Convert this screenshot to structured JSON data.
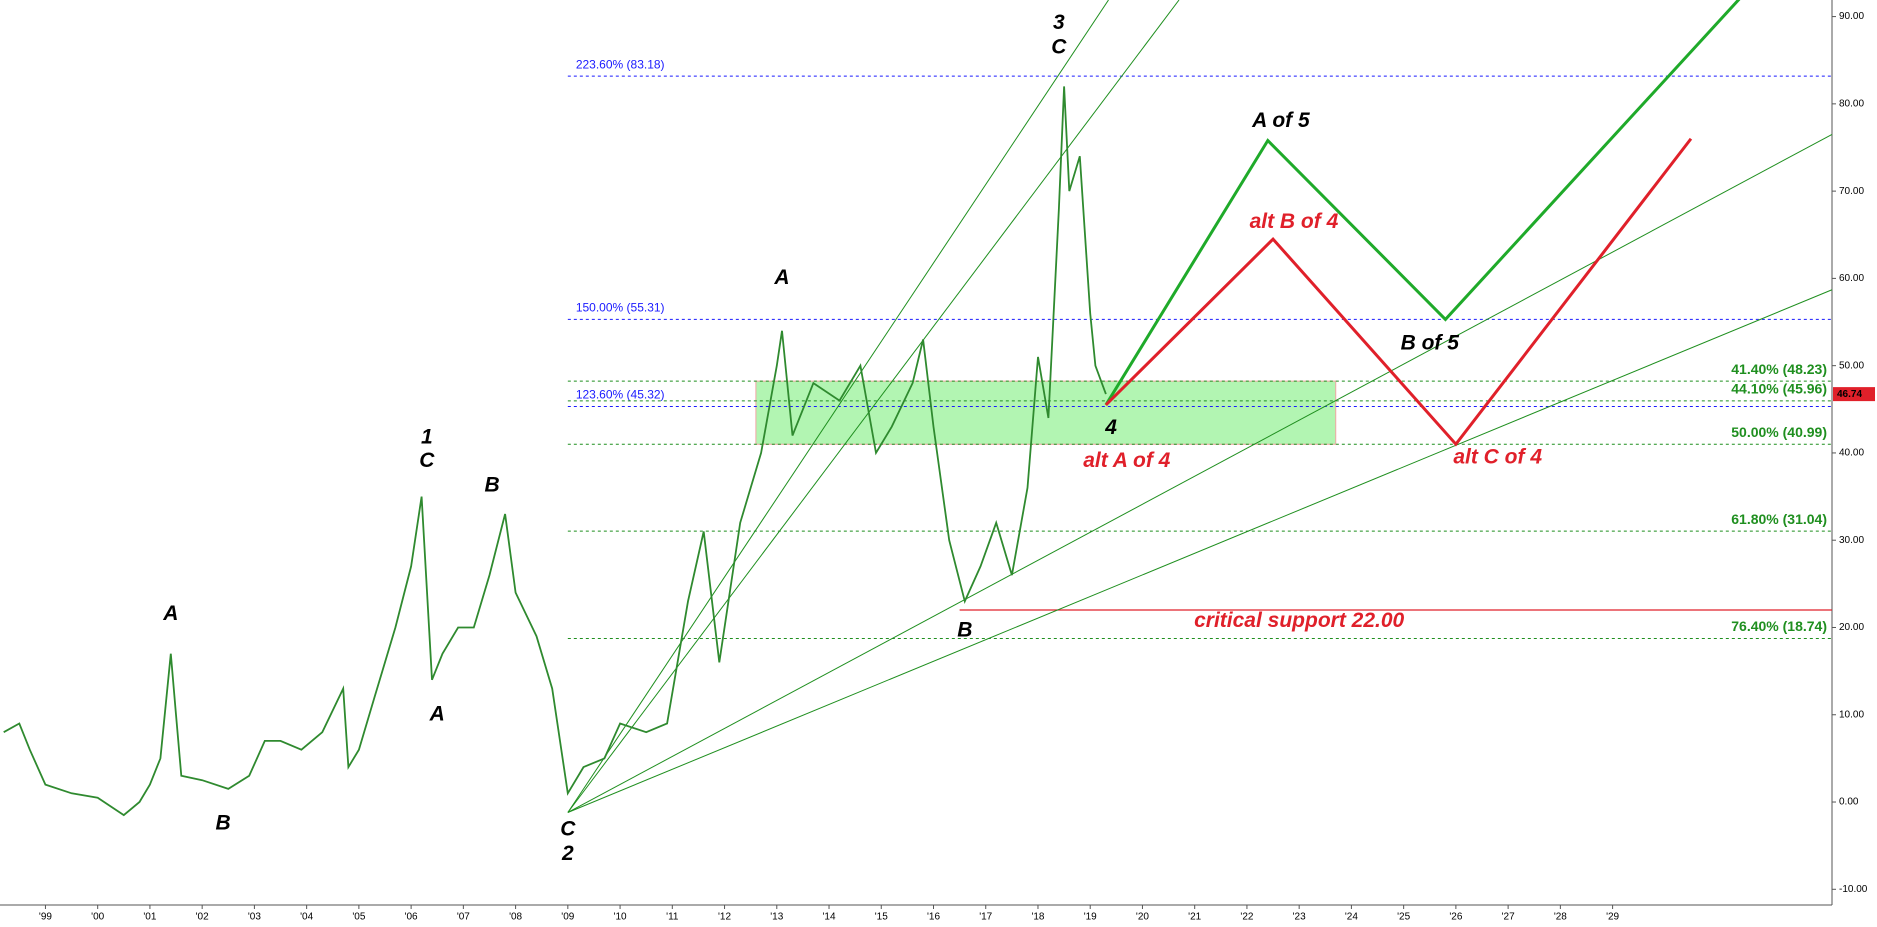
{
  "chart_data": {
    "type": "line",
    "xlim": [
      1998.13,
      2033.2
    ],
    "ylim": [
      -11.8,
      91.9
    ],
    "xticks": [
      {
        "value": 1999,
        "label": "'99"
      },
      {
        "value": 2000,
        "label": "'00"
      },
      {
        "value": 2001,
        "label": "'01"
      },
      {
        "value": 2002,
        "label": "'02"
      },
      {
        "value": 2003,
        "label": "'03"
      },
      {
        "value": 2004,
        "label": "'04"
      },
      {
        "value": 2005,
        "label": "'05"
      },
      {
        "value": 2006,
        "label": "'06"
      },
      {
        "value": 2007,
        "label": "'07"
      },
      {
        "value": 2008,
        "label": "'08"
      },
      {
        "value": 2009,
        "label": "'09"
      },
      {
        "value": 2010,
        "label": "'10"
      },
      {
        "value": 2011,
        "label": "'11"
      },
      {
        "value": 2012,
        "label": "'12"
      },
      {
        "value": 2013,
        "label": "'13"
      },
      {
        "value": 2014,
        "label": "'14"
      },
      {
        "value": 2015,
        "label": "'15"
      },
      {
        "value": 2016,
        "label": "'16"
      },
      {
        "value": 2017,
        "label": "'17"
      },
      {
        "value": 2018,
        "label": "'18"
      },
      {
        "value": 2019,
        "label": "'19"
      },
      {
        "value": 2020,
        "label": "'20"
      },
      {
        "value": 2021,
        "label": "'21"
      },
      {
        "value": 2022,
        "label": "'22"
      },
      {
        "value": 2023,
        "label": "'23"
      },
      {
        "value": 2024,
        "label": "'24"
      },
      {
        "value": 2025,
        "label": "'25"
      },
      {
        "value": 2026,
        "label": "'26"
      },
      {
        "value": 2027,
        "label": "'27"
      },
      {
        "value": 2028,
        "label": "'28"
      },
      {
        "value": 2029,
        "label": "'29"
      }
    ],
    "yticks": [
      {
        "value": -10,
        "label": "-10.00"
      },
      {
        "value": 0,
        "label": "0.00"
      },
      {
        "value": 10,
        "label": "10.00"
      },
      {
        "value": 20,
        "label": "20.00"
      },
      {
        "value": 30,
        "label": "30.00"
      },
      {
        "value": 40,
        "label": "40.00"
      },
      {
        "value": 50,
        "label": "50.00"
      },
      {
        "value": 60,
        "label": "60.00"
      },
      {
        "value": 70,
        "label": "70.00"
      },
      {
        "value": 80,
        "label": "80.00"
      },
      {
        "value": 90,
        "label": "90.00"
      }
    ],
    "series": [
      {
        "color": "#2f8a2f",
        "x": [
          1998.2,
          1998.5,
          1998.7,
          1999.0,
          1999.5,
          2000.0,
          2000.5,
          2000.8,
          2001.0,
          2001.2,
          2001.4,
          2001.5,
          2001.6,
          2002.0,
          2002.5,
          2002.9,
          2003.2,
          2003.5,
          2003.9,
          2004.3,
          2004.7,
          2004.8,
          2005.0,
          2005.3,
          2005.7,
          2006.0,
          2006.2,
          2006.4,
          2006.6,
          2006.9,
          2007.2,
          2007.5,
          2007.8,
          2008.0,
          2008.4,
          2008.7,
          2008.9,
          2009.0,
          2009.3,
          2009.7,
          2010.0,
          2010.5,
          2010.9,
          2011.3,
          2011.6,
          2011.9,
          2012.3,
          2012.7,
          2013.0,
          2013.1,
          2013.3,
          2013.7,
          2014.2,
          2014.6,
          2014.9,
          2015.2,
          2015.6,
          2015.8,
          2016.0,
          2016.3,
          2016.6,
          2016.9,
          2017.2,
          2017.5,
          2017.8,
          2018.0,
          2018.2,
          2018.4,
          2018.5,
          2018.6,
          2018.8,
          2019.0,
          2019.1,
          2019.3
        ],
        "values": [
          8,
          9,
          6,
          2,
          1,
          0.5,
          -1.5,
          0,
          2,
          5,
          17,
          10,
          3,
          2.5,
          1.5,
          3,
          7,
          7,
          6,
          8,
          13,
          4,
          6,
          12,
          20,
          27,
          35,
          14,
          17,
          20,
          20,
          26,
          33,
          24,
          19,
          13,
          5,
          1,
          4,
          5,
          9,
          8,
          9,
          23,
          31,
          16,
          32,
          40,
          50,
          54,
          42,
          48,
          46,
          50,
          40,
          43,
          48,
          53,
          43,
          30,
          23,
          27,
          32,
          26,
          36,
          51,
          44,
          68,
          82,
          70,
          74,
          56,
          50,
          46.74
        ]
      }
    ],
    "last_price": 46.74,
    "fib_levels": [
      {
        "label": "223.60% (83.18)",
        "value": 83.18,
        "color": "#1a1aff"
      },
      {
        "label": "150.00% (55.31)",
        "value": 55.31,
        "color": "#1a1aff"
      },
      {
        "label": "123.60% (45.32)",
        "value": 45.32,
        "color": "#1a1aff"
      },
      {
        "label": "41.40% (48.23)",
        "value": 48.23,
        "color": "#1f8f1f"
      },
      {
        "label": "44.10% (45.96)",
        "value": 45.96,
        "color": "#1f8f1f"
      },
      {
        "label": "50.00% (40.99)",
        "value": 40.99,
        "color": "#1f8f1f"
      },
      {
        "label": "61.80% (31.04)",
        "value": 31.04,
        "color": "#1f8f1f"
      },
      {
        "label": "76.40% (18.74)",
        "value": 18.74,
        "color": "#1f8f1f"
      }
    ],
    "support": {
      "label": "critical support 22.00",
      "value": 22
    },
    "annotations": [
      {
        "text": "3",
        "color": "#000"
      },
      {
        "text": "C",
        "color": "#000"
      },
      {
        "text": "A",
        "color": "#000"
      },
      {
        "text": "1",
        "color": "#000"
      },
      {
        "text": "C",
        "color": "#000"
      },
      {
        "text": "B",
        "color": "#000"
      },
      {
        "text": "A",
        "color": "#000"
      },
      {
        "text": "A",
        "color": "#000"
      },
      {
        "text": "B",
        "color": "#000"
      },
      {
        "text": "C",
        "color": "#000"
      },
      {
        "text": "2",
        "color": "#000"
      },
      {
        "text": "B",
        "color": "#000"
      },
      {
        "text": "4",
        "color": "#000"
      },
      {
        "text": "alt A of 4",
        "color": "#e0202a"
      },
      {
        "text": "A of 5",
        "color": "#000"
      },
      {
        "text": "alt B of 4",
        "color": "#e0202a"
      },
      {
        "text": "B of 5",
        "color": "#000"
      },
      {
        "text": "alt C of 4",
        "color": "#e0202a"
      }
    ]
  }
}
